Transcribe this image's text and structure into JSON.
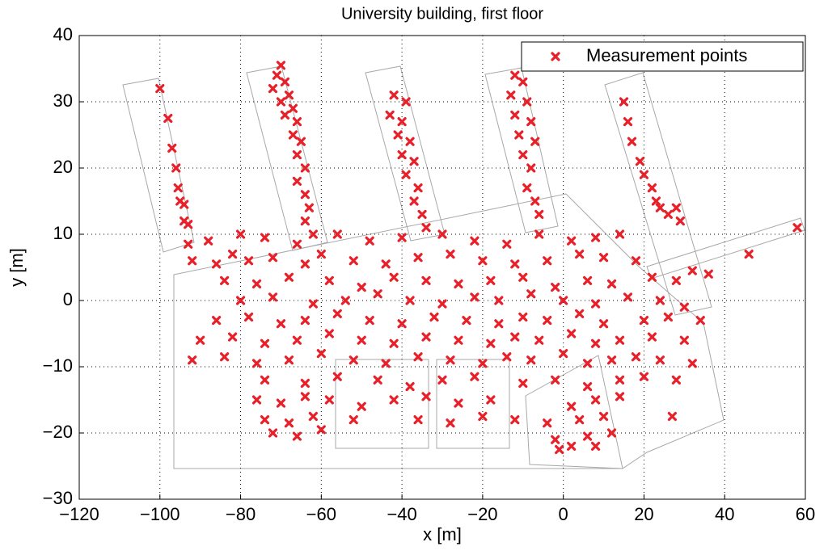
{
  "chart_data": {
    "type": "scatter",
    "title": "University building, first floor",
    "x_label": "x [m]",
    "y_label": "y [m]",
    "xlim": [
      -120,
      60
    ],
    "ylim": [
      -30,
      40
    ],
    "xticks": [
      {
        "value": -120,
        "label": "−120"
      },
      {
        "value": -100,
        "label": "−100"
      },
      {
        "value": -80,
        "label": "−80"
      },
      {
        "value": -60,
        "label": "−60"
      },
      {
        "value": -40,
        "label": "−40"
      },
      {
        "value": -20,
        "label": "−20"
      },
      0,
      20,
      40,
      60
    ],
    "yticks": [
      {
        "value": -30,
        "label": "−30"
      },
      {
        "value": -20,
        "label": "−20"
      },
      {
        "value": -10,
        "label": "−10"
      },
      0,
      10,
      20,
      30,
      40
    ],
    "grid": true,
    "legend": "upper right",
    "series": [
      {
        "name": "Measurement points",
        "color": "#e8202a",
        "x": [
          -100,
          -98,
          -97,
          -96,
          -95.5,
          -95,
          -94,
          -94,
          -93,
          -93,
          -70,
          -71,
          -69,
          -72,
          -68,
          -70,
          -67,
          -69,
          -66,
          -67,
          -65,
          -66,
          -64,
          -66,
          -64,
          -63,
          -64,
          -62,
          -42,
          -39,
          -43,
          -40,
          -41,
          -38,
          -40,
          -37,
          -39,
          -36,
          -37,
          -35,
          -34,
          -12,
          -10,
          -13,
          -9,
          -12,
          -8,
          -11,
          -7,
          -10,
          -8,
          -9,
          -7,
          -6,
          15,
          16,
          17,
          19,
          20,
          22,
          23,
          24,
          26,
          28,
          29,
          58,
          46,
          36,
          32,
          -88,
          -80,
          -74,
          -66,
          -56,
          -48,
          -40,
          -30,
          -22,
          -14,
          -6,
          2,
          8,
          14,
          -92,
          -86,
          -82,
          -78,
          -72,
          -64,
          -60,
          -52,
          -44,
          -36,
          -28,
          -20,
          -12,
          -4,
          4,
          10,
          18,
          -84,
          -76,
          -68,
          -58,
          -50,
          -42,
          -34,
          -26,
          -18,
          -10,
          -2,
          6,
          12,
          22,
          28,
          -80,
          -72,
          -62,
          -54,
          -46,
          -38,
          -30,
          -22,
          -16,
          -8,
          0,
          8,
          16,
          24,
          30,
          -86,
          -78,
          -70,
          -64,
          -56,
          -48,
          -40,
          -32,
          -24,
          -16,
          -10,
          -4,
          4,
          10,
          20,
          26,
          34,
          -90,
          -82,
          -74,
          -66,
          -58,
          -50,
          -42,
          -34,
          -26,
          -18,
          -12,
          -6,
          2,
          8,
          14,
          22,
          30,
          -92,
          -84,
          -76,
          -68,
          -60,
          -52,
          -44,
          -36,
          -28,
          -20,
          -14,
          -8,
          0,
          6,
          12,
          18,
          24,
          32,
          -74,
          -64,
          -56,
          -46,
          -38,
          -30,
          -22,
          -10,
          -2,
          6,
          14,
          20,
          28,
          -76,
          -70,
          -64,
          -58,
          -50,
          -42,
          -34,
          -26,
          -18,
          2,
          8,
          14,
          -74,
          -68,
          -62,
          -52,
          -36,
          -28,
          -20,
          -12,
          -4,
          4,
          10,
          27,
          -72,
          -66,
          -60,
          -2,
          6,
          12,
          -1,
          2,
          8
        ],
        "y": [
          32,
          27.5,
          23,
          20,
          17,
          15,
          14.5,
          12,
          11.5,
          8.5,
          35.5,
          34,
          33,
          32,
          31,
          30,
          29,
          28,
          27,
          25,
          24,
          22,
          20,
          18,
          16,
          14,
          12,
          10,
          31,
          30,
          28,
          27,
          25,
          24,
          22,
          21,
          19,
          17,
          15,
          13,
          11,
          34,
          33,
          31,
          30,
          28,
          27,
          25,
          24,
          22,
          20,
          17,
          15,
          13,
          30,
          27,
          24,
          21,
          19,
          17,
          15,
          14,
          13,
          14,
          12,
          11,
          7,
          4,
          4.5,
          9,
          10,
          9.5,
          8.5,
          10,
          9,
          9.5,
          10,
          9,
          8.5,
          10,
          9,
          9.5,
          10,
          6,
          5.5,
          7,
          6,
          6.5,
          5.5,
          7,
          6,
          5.5,
          6.5,
          7,
          6,
          5.5,
          6,
          7,
          6.5,
          6,
          3,
          2.5,
          3.5,
          3,
          2,
          3.5,
          3,
          2.5,
          3,
          3.5,
          2,
          3,
          2.5,
          3.5,
          3,
          0,
          0.5,
          -0.5,
          0,
          1,
          0,
          -0.5,
          0.5,
          0,
          1,
          0,
          -0.5,
          0.5,
          0,
          -1,
          -3,
          -2.5,
          -3.5,
          -3,
          -2,
          -3,
          -3.5,
          -2.5,
          -3,
          -3.5,
          -2.5,
          -3,
          -2,
          -3.5,
          -3,
          -2.5,
          -3,
          -6,
          -5.5,
          -6.5,
          -6,
          -5,
          -6,
          -6.5,
          -5.5,
          -6,
          -6.5,
          -5.5,
          -6,
          -5,
          -6.5,
          -6,
          -5.5,
          -6,
          -9,
          -8.5,
          -9.5,
          -9,
          -8,
          -9,
          -9.5,
          -8.5,
          -9,
          -9.5,
          -8.5,
          -9,
          -8,
          -9.5,
          -9,
          -8.5,
          -9,
          -9.5,
          -12,
          -12.5,
          -11.5,
          -12,
          -13,
          -12,
          -11.5,
          -12.5,
          -12,
          -13,
          -12,
          -11.5,
          -12,
          -15,
          -15.5,
          -14.5,
          -15,
          -16,
          -15,
          -14.5,
          -15.5,
          -15,
          -16,
          -15,
          -14.5,
          -18,
          -18.5,
          -17.5,
          -18,
          -18,
          -18.5,
          -17.5,
          -18,
          -18.5,
          -18,
          -17.5,
          -17.5,
          -20,
          -20.5,
          -19.5,
          -21,
          -20.5,
          -20,
          -22.5,
          -22,
          -22
        ]
      }
    ]
  }
}
